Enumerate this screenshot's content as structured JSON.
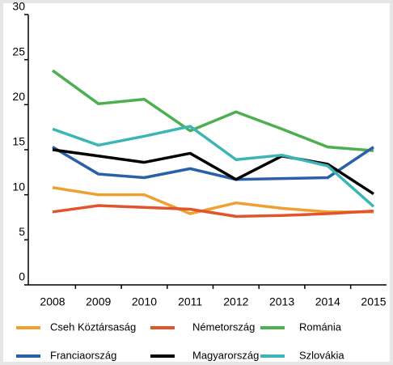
{
  "chart_data": {
    "type": "line",
    "categories": [
      "2008",
      "2009",
      "2010",
      "2011",
      "2012",
      "2013",
      "2014",
      "2015"
    ],
    "series": [
      {
        "name": "Cseh Köztársaság",
        "color": "#f0a030",
        "values": [
          10.8,
          10.0,
          10.0,
          7.9,
          9.1,
          8.5,
          8.1,
          8.1
        ]
      },
      {
        "name": "Németország",
        "color": "#e2542c",
        "values": [
          8.1,
          8.8,
          8.6,
          8.4,
          7.6,
          7.7,
          7.9,
          8.2
        ]
      },
      {
        "name": "Románia",
        "color": "#4caf50",
        "values": [
          23.8,
          20.1,
          20.6,
          17.1,
          19.2,
          17.3,
          15.3,
          14.9
        ]
      },
      {
        "name": "Franciaország",
        "color": "#2a5faa",
        "values": [
          15.3,
          12.3,
          11.9,
          12.9,
          11.7,
          11.8,
          11.9,
          15.3
        ]
      },
      {
        "name": "Magyarország",
        "color": "#000000",
        "values": [
          15.0,
          14.3,
          13.6,
          14.6,
          11.7,
          14.3,
          13.4,
          10.1
        ]
      },
      {
        "name": "Szlovákia",
        "color": "#3bb5b5",
        "values": [
          17.3,
          15.5,
          16.5,
          17.6,
          13.9,
          14.4,
          13.2,
          8.7
        ]
      }
    ],
    "ylim": [
      0,
      30
    ],
    "yticks": [
      0,
      5,
      10,
      15,
      20,
      25,
      30
    ],
    "grid": false
  }
}
